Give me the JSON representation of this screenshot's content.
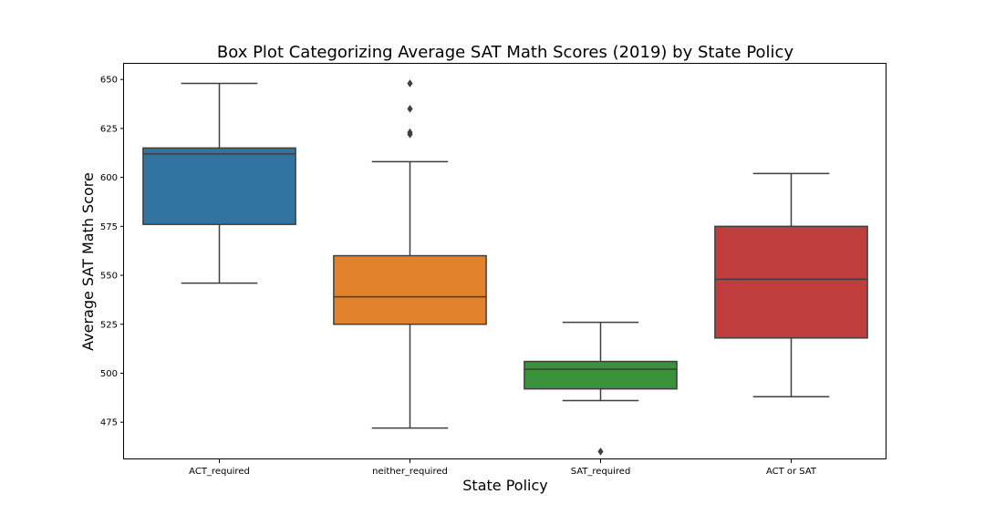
{
  "chart_data": {
    "type": "box",
    "title": "Box Plot Categorizing Average SAT Math Scores (2019) by State Policy",
    "xlabel": "State Policy",
    "ylabel": "Average SAT Math Score",
    "ylim": [
      456,
      658
    ],
    "yticks": [
      475,
      500,
      525,
      550,
      575,
      600,
      625,
      650
    ],
    "grid": false,
    "categories": [
      "ACT_required",
      "neither_required",
      "SAT_required",
      "ACT or SAT"
    ],
    "colors": [
      "#3274a1",
      "#e1812c",
      "#3a923a",
      "#c03d3e"
    ],
    "boxes": [
      {
        "name": "ACT_required",
        "whisker_low": 546,
        "q1": 576,
        "median": 612,
        "q3": 615,
        "whisker_high": 648,
        "outliers": []
      },
      {
        "name": "neither_required",
        "whisker_low": 472,
        "q1": 525,
        "median": 539,
        "q3": 560,
        "whisker_high": 608,
        "outliers": [
          622,
          623,
          635,
          648
        ]
      },
      {
        "name": "SAT_required",
        "whisker_low": 486,
        "q1": 492,
        "median": 502,
        "q3": 506,
        "whisker_high": 526,
        "outliers": [
          460
        ]
      },
      {
        "name": "ACT or SAT",
        "whisker_low": 488,
        "q1": 518,
        "median": 548,
        "q3": 575,
        "whisker_high": 602,
        "outliers": []
      }
    ]
  }
}
